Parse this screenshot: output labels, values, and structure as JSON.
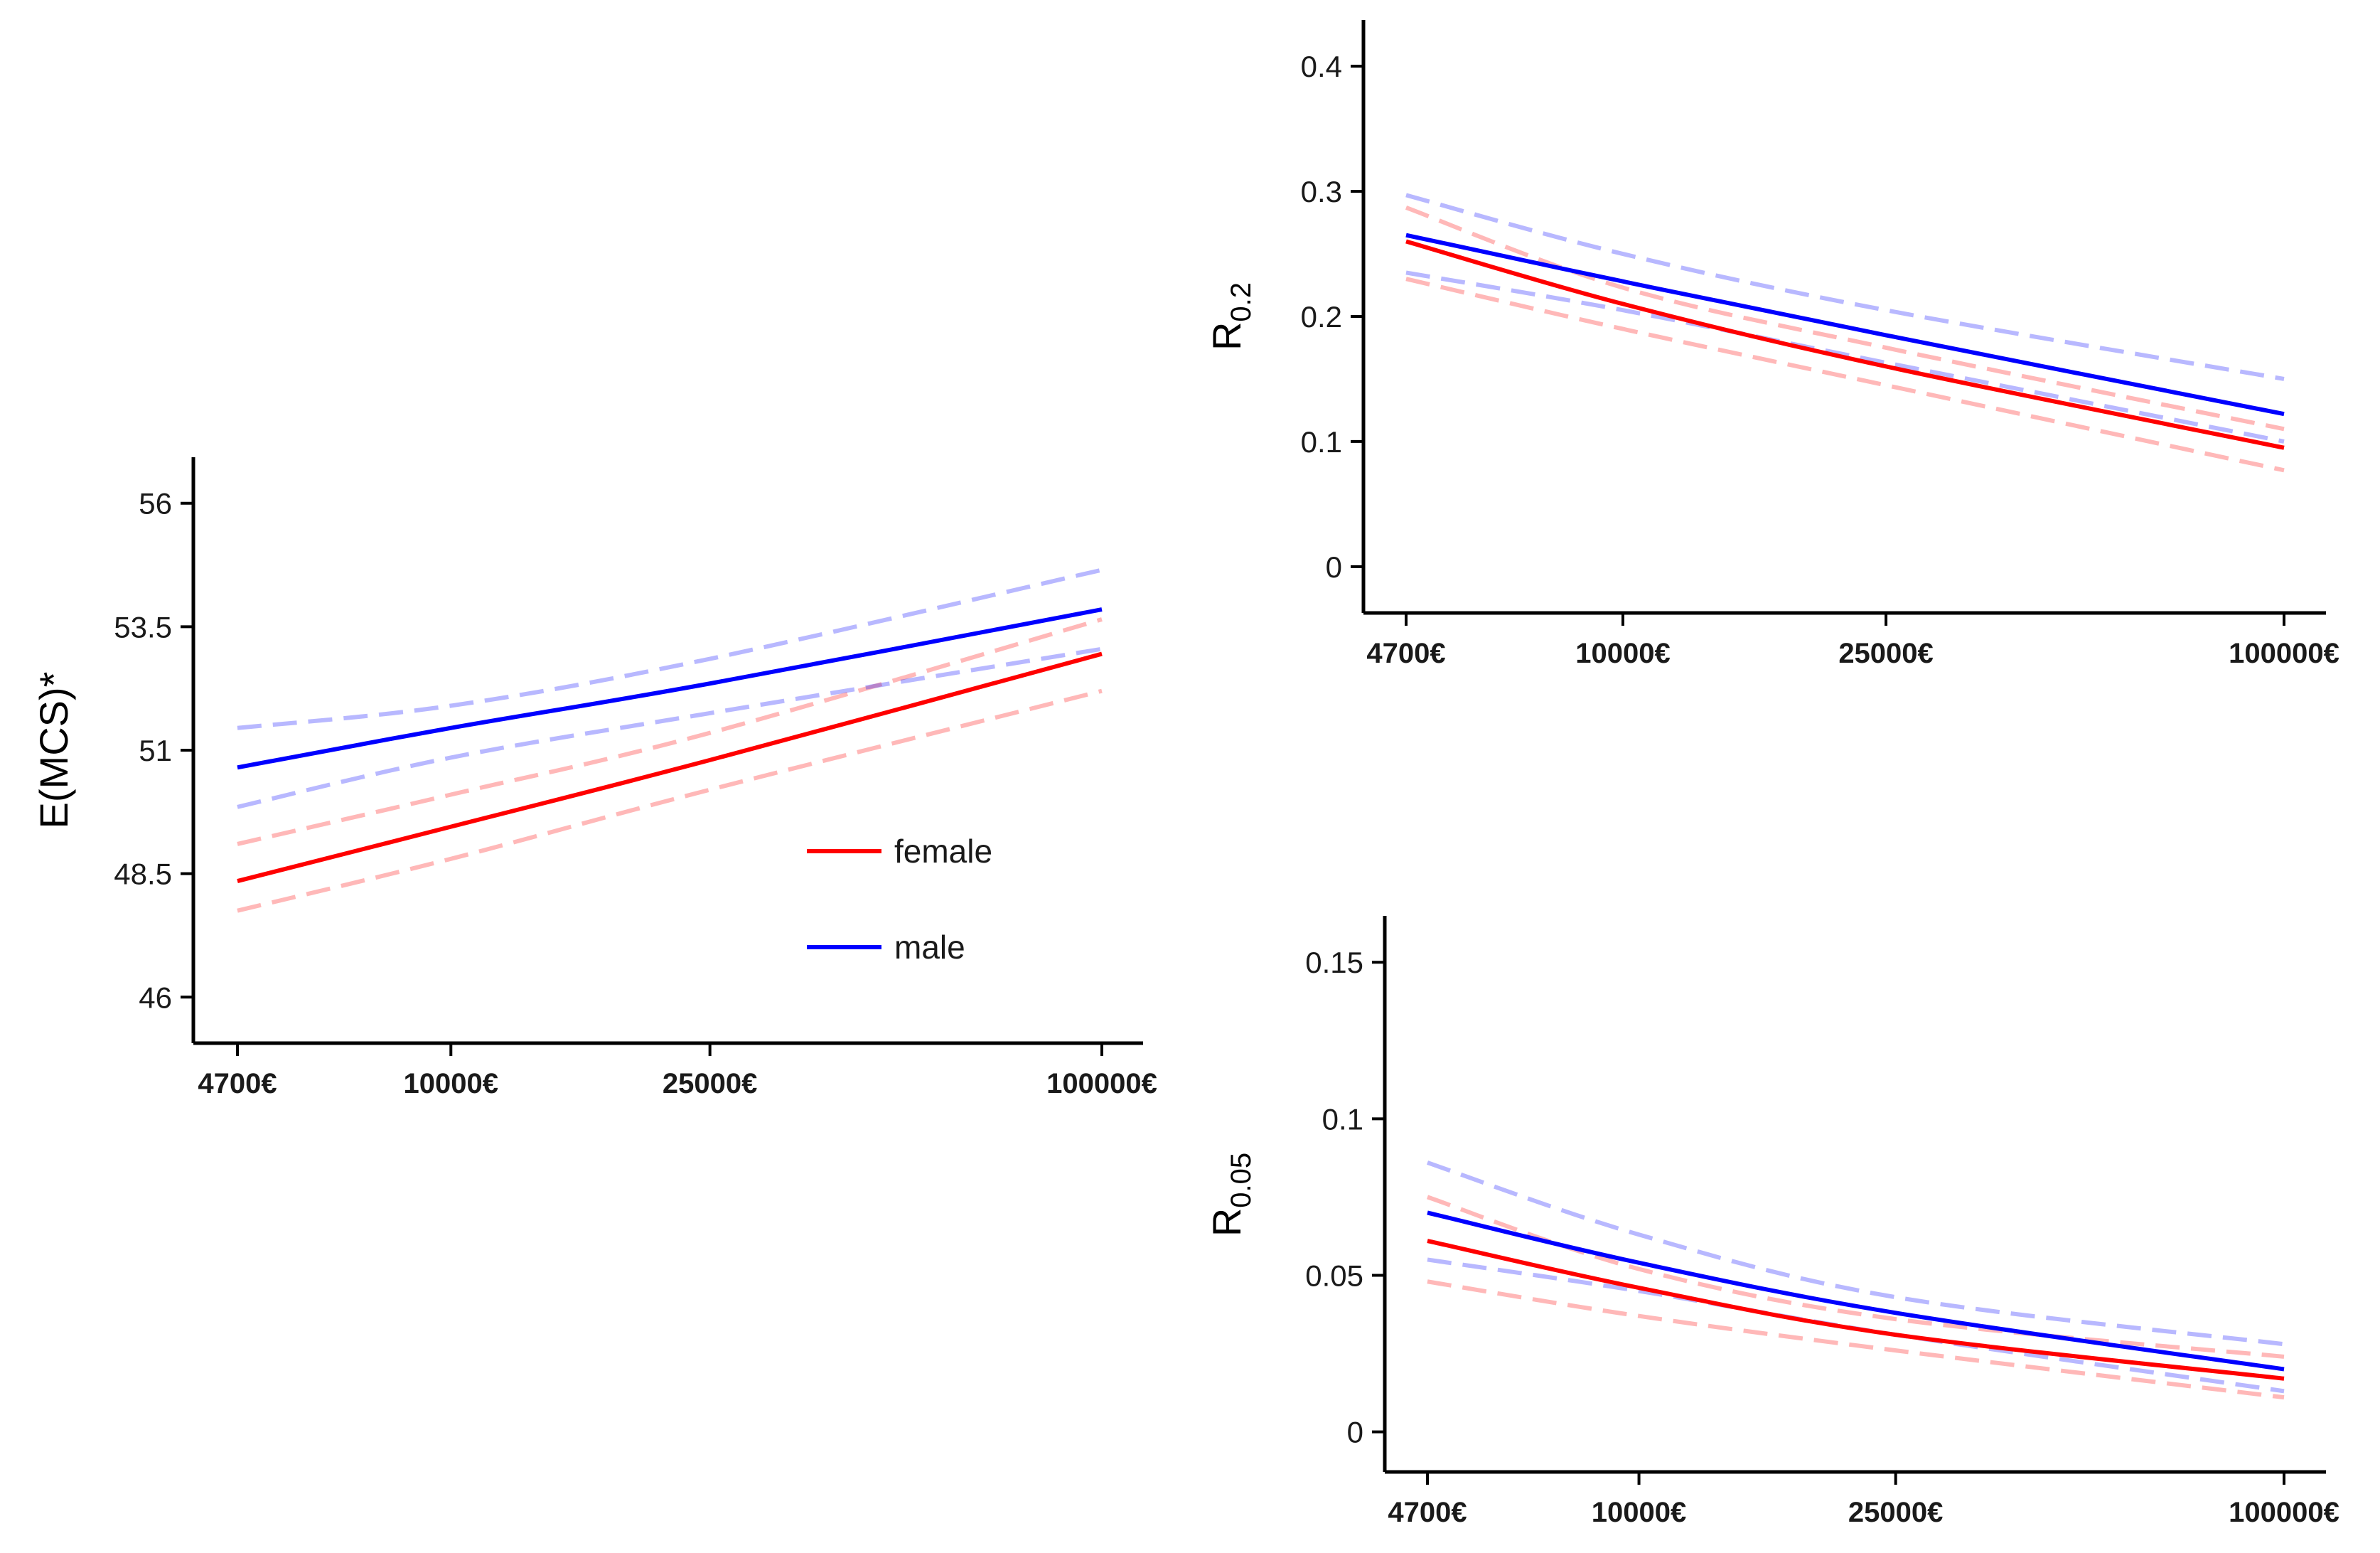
{
  "colors": {
    "female": "#ff0000",
    "male": "#0000ff"
  },
  "legend": {
    "female": "female",
    "male": "male"
  },
  "chart_data": [
    {
      "type": "line",
      "id": "mcs",
      "title": "",
      "xlabel": "",
      "ylabel": "E(MCS)*",
      "x_scale": "log",
      "xlim": [
        4700,
        100000
      ],
      "x_ticks": [
        4700,
        10000,
        25000,
        100000
      ],
      "x_tick_labels": [
        "4700€",
        "10000€",
        "25000€",
        "100000€"
      ],
      "ylim": [
        45.5,
        56.5
      ],
      "y_ticks": [
        46,
        48.5,
        51,
        53.5,
        56
      ],
      "y_tick_labels": [
        "46",
        "48.5",
        "51",
        "53.5",
        "56"
      ],
      "x": [
        4700,
        10000,
        25000,
        100000
      ],
      "series": [
        {
          "name": "female",
          "estimate": [
            48.35,
            49.45,
            50.8,
            52.95
          ],
          "lower": [
            47.75,
            48.8,
            50.2,
            52.2
          ],
          "upper": [
            49.1,
            50.1,
            51.35,
            53.65
          ]
        },
        {
          "name": "male",
          "estimate": [
            50.65,
            51.45,
            52.35,
            53.85
          ],
          "lower": [
            49.85,
            50.85,
            51.75,
            53.05
          ],
          "upper": [
            51.45,
            51.9,
            52.85,
            54.65
          ]
        }
      ]
    },
    {
      "type": "line",
      "id": "r02",
      "title": "",
      "xlabel": "",
      "ylabel": "R",
      "ylabel_sub": "0.2",
      "x_scale": "log",
      "xlim": [
        4700,
        100000
      ],
      "x_ticks": [
        4700,
        10000,
        25000,
        100000
      ],
      "x_tick_labels": [
        "4700€",
        "10000€",
        "25000€",
        "100000€"
      ],
      "ylim": [
        -0.02,
        0.42
      ],
      "y_ticks": [
        0,
        0.1,
        0.2,
        0.3,
        0.4
      ],
      "y_tick_labels": [
        "0",
        "0.1",
        "0.2",
        "0.3",
        "0.4"
      ],
      "x": [
        4700,
        10000,
        25000,
        100000
      ],
      "series": [
        {
          "name": "female",
          "estimate": [
            0.26,
            0.21,
            0.16,
            0.095
          ],
          "lower": [
            0.23,
            0.19,
            0.145,
            0.077
          ],
          "upper": [
            0.287,
            0.223,
            0.175,
            0.11
          ]
        },
        {
          "name": "male",
          "estimate": [
            0.265,
            0.228,
            0.185,
            0.122
          ],
          "lower": [
            0.235,
            0.205,
            0.163,
            0.1
          ],
          "upper": [
            0.297,
            0.25,
            0.205,
            0.15
          ]
        }
      ]
    },
    {
      "type": "line",
      "id": "r005",
      "title": "",
      "xlabel": "",
      "ylabel": "R",
      "ylabel_sub": "0.05",
      "x_scale": "log",
      "xlim": [
        4700,
        100000
      ],
      "x_ticks": [
        4700,
        10000,
        25000,
        100000
      ],
      "x_tick_labels": [
        "4700€",
        "10000€",
        "25000€",
        "100000€"
      ],
      "ylim": [
        -0.006,
        0.158
      ],
      "y_ticks": [
        0,
        0.05,
        0.1,
        0.15
      ],
      "y_tick_labels": [
        "0",
        "0.05",
        "0.1",
        "0.15"
      ],
      "x": [
        4700,
        10000,
        25000,
        100000
      ],
      "series": [
        {
          "name": "female",
          "estimate": [
            0.061,
            0.046,
            0.031,
            0.017
          ],
          "lower": [
            0.048,
            0.037,
            0.026,
            0.011
          ],
          "upper": [
            0.075,
            0.052,
            0.036,
            0.024
          ]
        },
        {
          "name": "male",
          "estimate": [
            0.07,
            0.054,
            0.038,
            0.02
          ],
          "lower": [
            0.055,
            0.045,
            0.031,
            0.013
          ],
          "upper": [
            0.086,
            0.063,
            0.043,
            0.028
          ]
        }
      ]
    }
  ]
}
